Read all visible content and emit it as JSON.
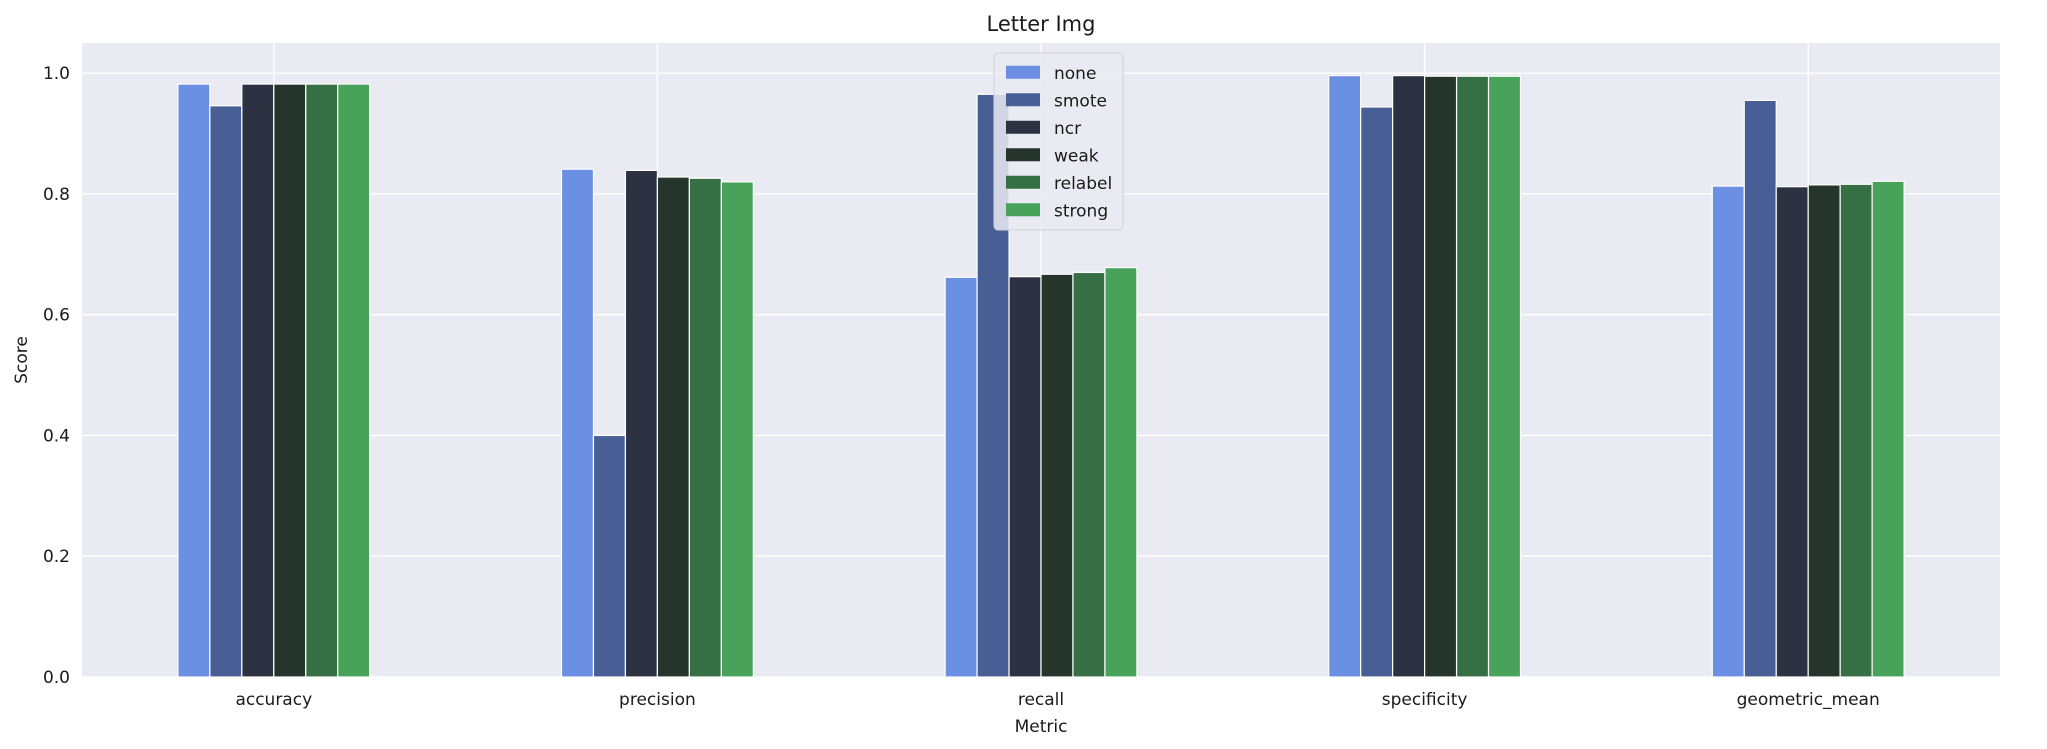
{
  "chart_data": {
    "type": "bar",
    "title": "Letter Img",
    "xlabel": "Metric",
    "ylabel": "Score",
    "ylim": [
      0,
      1.05
    ],
    "yticks": [
      0.0,
      0.2,
      0.4,
      0.6,
      0.8,
      1.0
    ],
    "ytick_labels": [
      "0.0",
      "0.2",
      "0.4",
      "0.6",
      "0.8",
      "1.0"
    ],
    "grid": true,
    "legend_position": "top-center",
    "categories": [
      "accuracy",
      "precision",
      "recall",
      "specificity",
      "geometric_mean"
    ],
    "series": [
      {
        "name": "none",
        "color": "#6a8fe3",
        "values": [
          0.982,
          0.841,
          0.662,
          0.996,
          0.813
        ]
      },
      {
        "name": "smote",
        "color": "#475f94",
        "values": [
          0.946,
          0.4,
          0.965,
          0.944,
          0.955
        ]
      },
      {
        "name": "ncr",
        "color": "#2c3242",
        "values": [
          0.982,
          0.839,
          0.663,
          0.996,
          0.812
        ]
      },
      {
        "name": "weak",
        "color": "#26352c",
        "values": [
          0.982,
          0.828,
          0.667,
          0.995,
          0.815
        ]
      },
      {
        "name": "relabel",
        "color": "#366f44",
        "values": [
          0.982,
          0.826,
          0.67,
          0.995,
          0.816
        ]
      },
      {
        "name": "strong",
        "color": "#48a259",
        "values": [
          0.982,
          0.82,
          0.678,
          0.995,
          0.821
        ]
      }
    ]
  }
}
